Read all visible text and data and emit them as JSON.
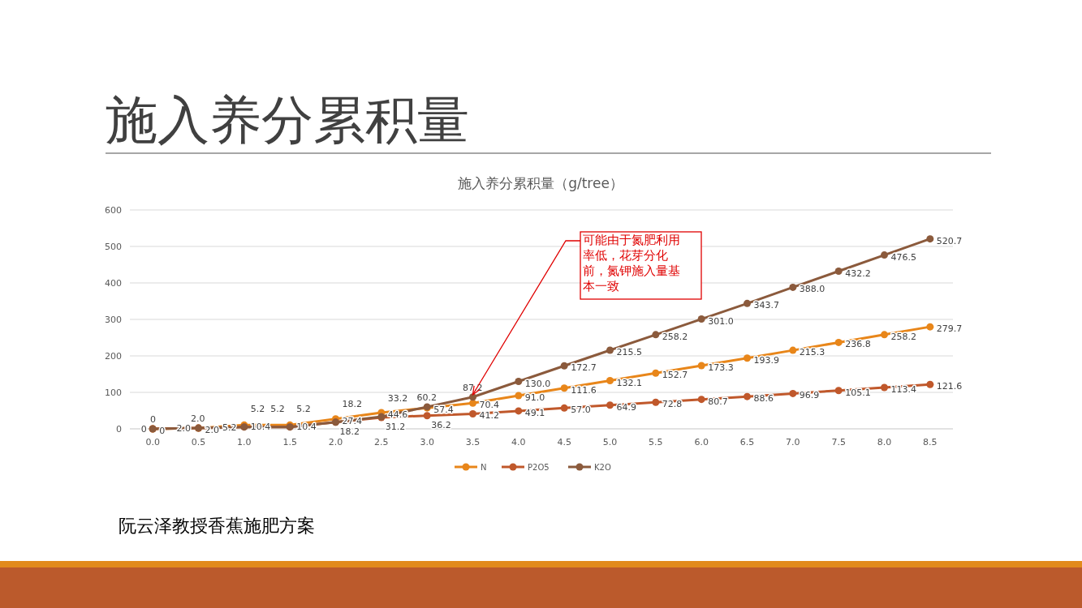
{
  "chart_data": {
    "type": "line",
    "title": "施入养分累积量",
    "subtitle": "施入养分累积量（g/tree）",
    "categories": [
      "0.0",
      "0.5",
      "1.0",
      "1.5",
      "2.0",
      "2.5",
      "3.0",
      "3.5",
      "4.0",
      "4.5",
      "5.0",
      "5.5",
      "6.0",
      "6.5",
      "7.0",
      "7.5",
      "8.0",
      "8.5"
    ],
    "series": [
      {
        "name": "N",
        "color": "#e8861a",
        "values": [
          0,
          2.0,
          10.4,
          10.4,
          27.4,
          44.6,
          57.4,
          70.4,
          91.0,
          111.6,
          132.1,
          152.7,
          173.3,
          193.9,
          215.3,
          236.8,
          258.2,
          279.7
        ],
        "value_labels": [
          "0",
          "2.0",
          "10.4",
          "10.4",
          "27.4",
          "44.6",
          "57.4",
          "70.4",
          "91.0",
          "111.6",
          "132.1",
          "152.7",
          "173.3",
          "193.9",
          "215.3",
          "236.8",
          "258.2",
          "279.7"
        ]
      },
      {
        "name": "P2O5",
        "color": "#c0582b",
        "values": [
          0,
          2.0,
          5.2,
          5.2,
          18.2,
          31.2,
          36.2,
          41.2,
          49.1,
          57.0,
          64.9,
          72.8,
          80.7,
          88.6,
          96.9,
          105.1,
          113.4,
          121.6
        ],
        "value_labels": [
          "0",
          "2.0",
          "5.2",
          "5.2",
          "18.2",
          "31.2",
          "36.2",
          "41.2",
          "49.1",
          "57.0",
          "64.9",
          "72.8",
          "80.7",
          "88.6",
          "96.9",
          "105.1",
          "113.4",
          "121.6"
        ]
      },
      {
        "name": "K2O",
        "color": "#8b5a3c",
        "values": [
          0,
          2.0,
          5.2,
          5.2,
          18.2,
          33.2,
          60.2,
          87.2,
          130.0,
          172.7,
          215.5,
          258.2,
          301.0,
          343.7,
          388.0,
          432.2,
          476.5,
          520.7
        ],
        "value_labels": [
          "0",
          "2.0",
          "5.2",
          "5.2",
          "18.2",
          "33.2",
          "60.2",
          "87.2",
          "130.0",
          "172.7",
          "215.5",
          "258.2",
          "301.0",
          "343.7",
          "388.0",
          "432.2",
          "476.5",
          "520.7"
        ]
      }
    ],
    "ylim": [
      0,
      600
    ],
    "yticks": [
      0,
      100,
      200,
      300,
      400,
      500,
      600
    ],
    "grid": "y",
    "legend": "bottom",
    "marker": "circle",
    "line_style": "solid",
    "annotations": [
      {
        "text": "可能由于氮肥利用率低，花芽分化前，氮钾施入量基本一致",
        "x": "3.5",
        "y": 87.2
      },
      "阮云泽教授香蕉施肥方案"
    ]
  }
}
